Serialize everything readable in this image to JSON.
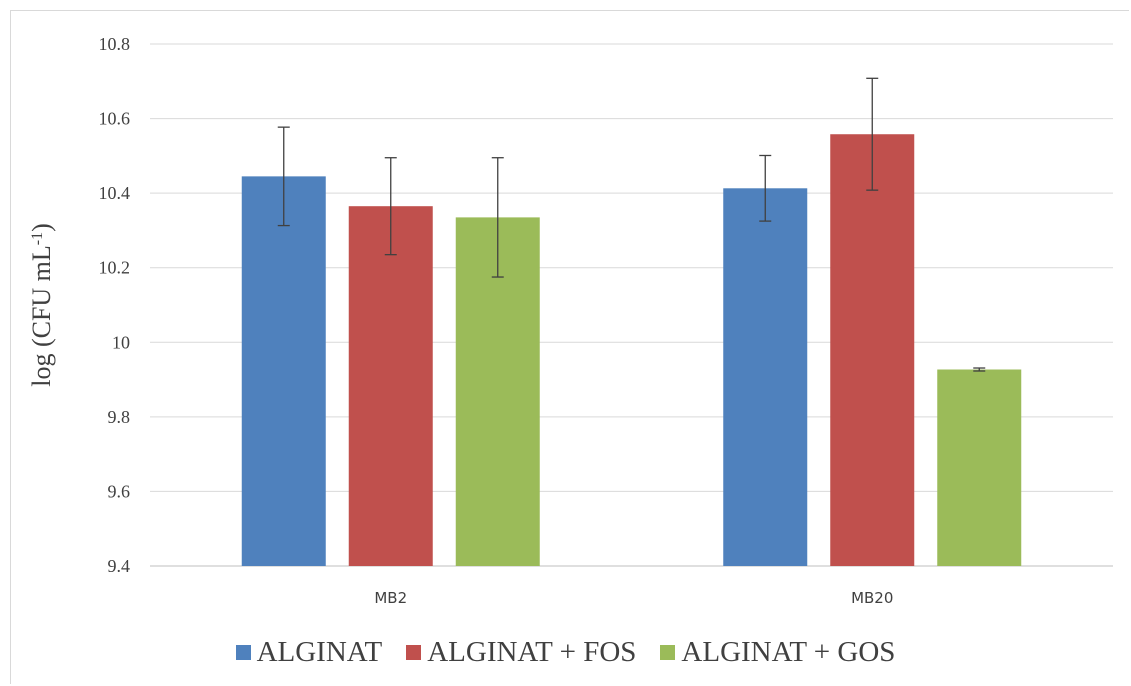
{
  "chart_data": {
    "type": "bar",
    "categories": [
      "MB2",
      "MB20"
    ],
    "series": [
      {
        "name": "ALGINAT",
        "color": "#4f81bd",
        "values": [
          10.445,
          10.413
        ],
        "errors": [
          0.132,
          0.088
        ]
      },
      {
        "name": "ALGINAT + FOS",
        "color": "#c0504d",
        "values": [
          10.365,
          10.558
        ],
        "errors": [
          0.13,
          0.15
        ]
      },
      {
        "name": "ALGINAT + GOS",
        "color": "#9bbb59",
        "values": [
          10.335,
          9.927
        ],
        "errors": [
          0.16,
          0.004
        ]
      }
    ],
    "ylabel_main": "log (CFU mL",
    "ylabel_sup": "-1",
    "ylabel_close": ")",
    "ylim": [
      9.4,
      10.8
    ],
    "yticks": [
      "9.4",
      "9.6",
      "9.8",
      "10",
      "10.2",
      "10.4",
      "10.6",
      "10.8"
    ],
    "grid": true,
    "legend_position": "bottom"
  }
}
